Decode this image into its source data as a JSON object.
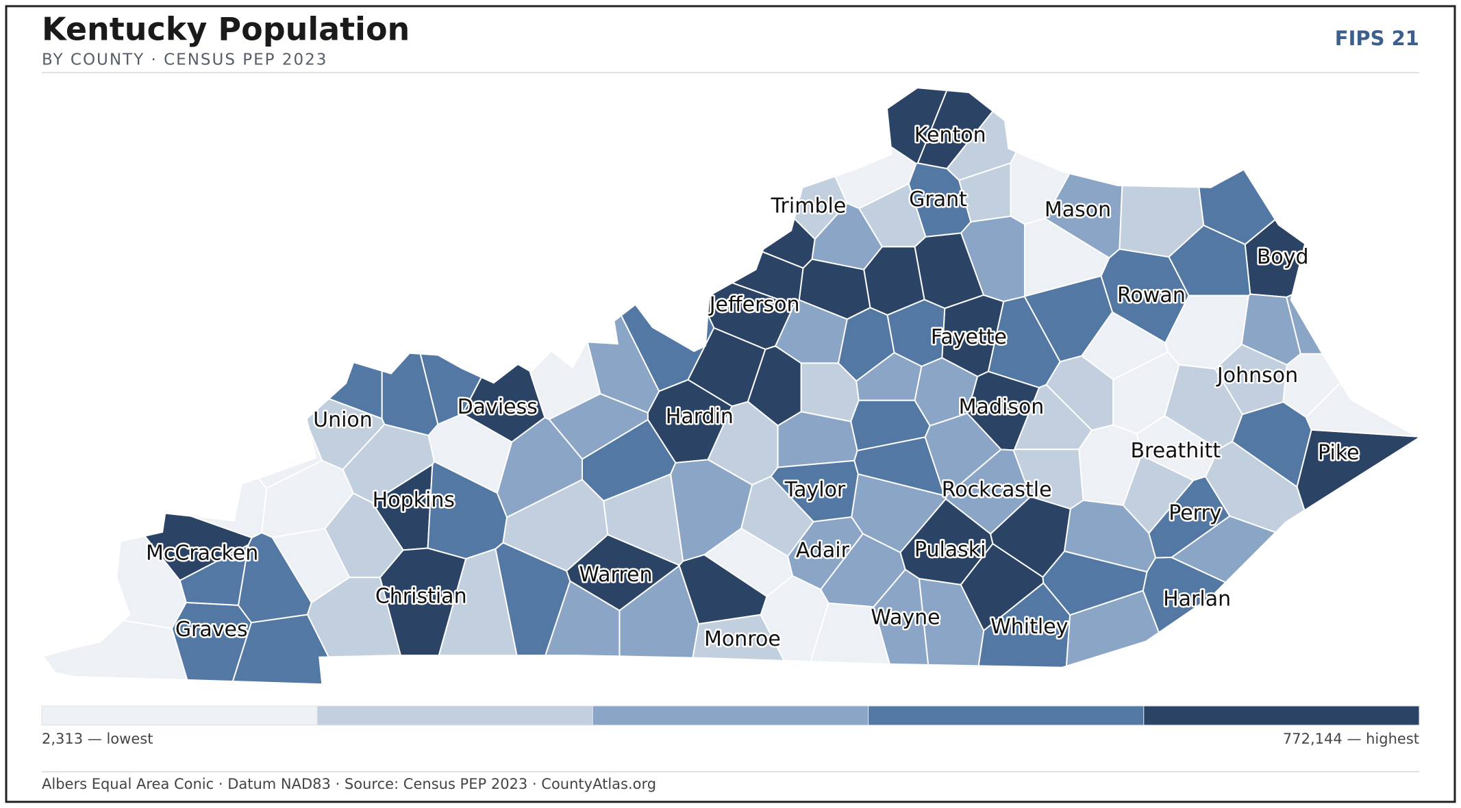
{
  "header": {
    "title": "Kentucky Population",
    "subtitle": "BY COUNTY · CENSUS PEP 2023",
    "badge": "FIPS 21"
  },
  "map": {
    "counties": [
      {
        "name": "Kenton",
        "color": "#2b4466"
      },
      {
        "name": "Grant",
        "color": "#5478a4"
      },
      {
        "name": "Trimble",
        "color": "#c2cfdf"
      },
      {
        "name": "Mason",
        "color": "#8aa5c5"
      },
      {
        "name": "Boyd",
        "color": "#2b4466"
      },
      {
        "name": "Jefferson",
        "color": "#2b4466"
      },
      {
        "name": "Rowan",
        "color": "#5478a4"
      },
      {
        "name": "Fayette",
        "color": "#2b4466"
      },
      {
        "name": "Johnson",
        "color": "#c2cfdf"
      },
      {
        "name": "Daviess",
        "color": "#2b4466"
      },
      {
        "name": "Union",
        "color": "#c2cfdf"
      },
      {
        "name": "Hardin",
        "color": "#2b4466"
      },
      {
        "name": "Madison",
        "color": "#2b4466"
      },
      {
        "name": "Breathitt",
        "color": "#edf0f5"
      },
      {
        "name": "Pike",
        "color": "#2b4466"
      },
      {
        "name": "Taylor",
        "color": "#5478a4"
      },
      {
        "name": "Rockcastle",
        "color": "#8aa5c5"
      },
      {
        "name": "Hopkins",
        "color": "#2b4466"
      },
      {
        "name": "Perry",
        "color": "#5478a4"
      },
      {
        "name": "McCracken",
        "color": "#2b4466"
      },
      {
        "name": "Adair",
        "color": "#8aa5c5"
      },
      {
        "name": "Pulaski",
        "color": "#2b4466"
      },
      {
        "name": "Christian",
        "color": "#2b4466"
      },
      {
        "name": "Warren",
        "color": "#2b4466"
      },
      {
        "name": "Harlan",
        "color": "#5478a4"
      },
      {
        "name": "Graves",
        "color": "#5478a4"
      },
      {
        "name": "Wayne",
        "color": "#8aa5c5"
      },
      {
        "name": "Whitley",
        "color": "#5478a4"
      },
      {
        "name": "Monroe",
        "color": "#c2cfdf"
      }
    ]
  },
  "legend": {
    "colors": [
      "#edf0f5",
      "#c2cfdf",
      "#8aa5c5",
      "#5478a4",
      "#2b4466"
    ],
    "low_label": "2,313 — lowest",
    "high_label": "772,144 — highest"
  },
  "footer": {
    "text": "Albers Equal Area Conic · Datum NAD83 · Source: Census PEP 2023 · CountyAtlas.org"
  }
}
